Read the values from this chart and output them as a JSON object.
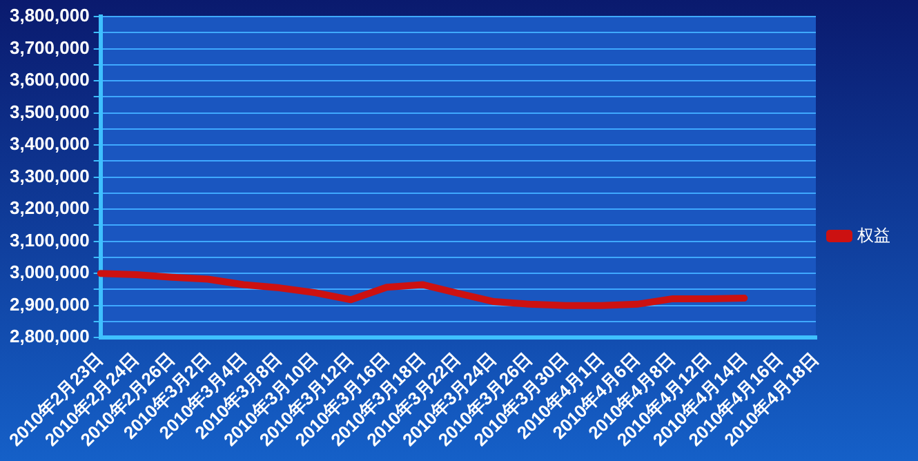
{
  "chart_data": {
    "type": "line",
    "categories": [
      "2010年2月23日",
      "2010年2月24日",
      "2010年2月26日",
      "2010年3月2日",
      "2010年3月4日",
      "2010年3月8日",
      "2010年3月10日",
      "2010年3月12日",
      "2010年3月16日",
      "2010年3月18日",
      "2010年3月22日",
      "2010年3月24日",
      "2010年3月26日",
      "2010年3月30日",
      "2010年4月1日",
      "2010年4月6日",
      "2010年4月8日",
      "2010年4月12日",
      "2010年4月14日",
      "2010年4月16日",
      "2010年4月18日"
    ],
    "series": [
      {
        "name": "权益",
        "color": "#cc1111",
        "values": [
          3000000,
          2996000,
          2988000,
          2982000,
          2965000,
          2955000,
          2940000,
          2918000,
          2957000,
          2965000,
          2938000,
          2912000,
          2904000,
          2900000,
          2900000,
          2904000,
          2921000,
          2921000,
          2923000,
          null,
          null
        ]
      }
    ],
    "ylim": [
      2800000,
      3800000
    ],
    "yticks": [
      {
        "value": 2800000,
        "label": "2,800,000"
      },
      {
        "value": 2850000,
        "label": null
      },
      {
        "value": 2900000,
        "label": "2,900,000"
      },
      {
        "value": 2950000,
        "label": null
      },
      {
        "value": 3000000,
        "label": "3,000,000"
      },
      {
        "value": 3050000,
        "label": null
      },
      {
        "value": 3100000,
        "label": "3,100,000"
      },
      {
        "value": 3150000,
        "label": null
      },
      {
        "value": 3200000,
        "label": "3,200,000"
      },
      {
        "value": 3250000,
        "label": null
      },
      {
        "value": 3300000,
        "label": "3,300,000"
      },
      {
        "value": 3350000,
        "label": null
      },
      {
        "value": 3400000,
        "label": "3,400,000"
      },
      {
        "value": 3450000,
        "label": null
      },
      {
        "value": 3500000,
        "label": "3,500,000"
      },
      {
        "value": 3550000,
        "label": null
      },
      {
        "value": 3600000,
        "label": "3,600,000"
      },
      {
        "value": 3650000,
        "label": null
      },
      {
        "value": 3700000,
        "label": "3,700,000"
      },
      {
        "value": 3750000,
        "label": null
      },
      {
        "value": 3800000,
        "label": "3,800,000"
      }
    ],
    "grid": "y",
    "legend": "right",
    "marker": "none",
    "line_style": "solid"
  }
}
